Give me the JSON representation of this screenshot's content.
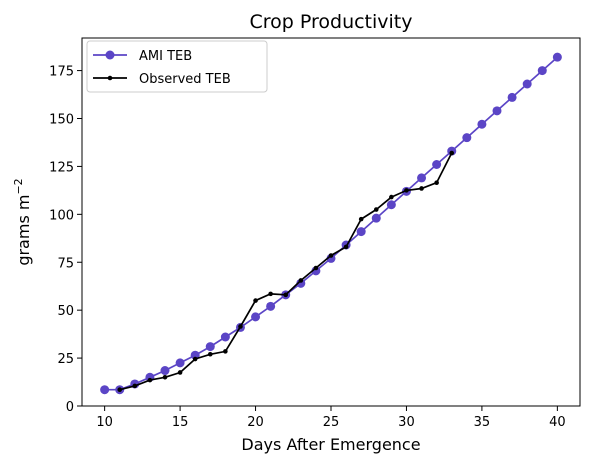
{
  "chart_data": {
    "type": "line",
    "title": "Crop Productivity",
    "xlabel": "Days After Emergence",
    "ylabel": "grams m",
    "ylabel_superscript": "−2",
    "xlim": [
      8.5,
      41.5
    ],
    "ylim": [
      0,
      192
    ],
    "x_ticks": [
      10,
      15,
      20,
      25,
      30,
      35,
      40
    ],
    "y_ticks": [
      0,
      25,
      50,
      75,
      100,
      125,
      150,
      175
    ],
    "grid": false,
    "legend_position": "top-left",
    "series": [
      {
        "name": "AMI TEB",
        "color": "#5b45c6",
        "marker": "circle-large",
        "points": [
          [
            10,
            8.5
          ],
          [
            11,
            8.5
          ],
          [
            12,
            11.5
          ],
          [
            13,
            15
          ],
          [
            14,
            18.5
          ],
          [
            15,
            22.5
          ],
          [
            16,
            26.5
          ],
          [
            17,
            31
          ],
          [
            18,
            36
          ],
          [
            19,
            41
          ],
          [
            20,
            46.5
          ],
          [
            21,
            52
          ],
          [
            22,
            58
          ],
          [
            23,
            64
          ],
          [
            24,
            70.5
          ],
          [
            25,
            77
          ],
          [
            26,
            84
          ],
          [
            27,
            91
          ],
          [
            28,
            98
          ],
          [
            29,
            105
          ],
          [
            30,
            112
          ],
          [
            31,
            119
          ],
          [
            32,
            126
          ],
          [
            33,
            133
          ],
          [
            34,
            140
          ],
          [
            35,
            147
          ],
          [
            36,
            154
          ],
          [
            37,
            161
          ],
          [
            38,
            168
          ],
          [
            39,
            175
          ],
          [
            40,
            182
          ]
        ]
      },
      {
        "name": "Observed TEB",
        "color": "#000000",
        "marker": "circle-small",
        "points": [
          [
            11,
            8.5
          ],
          [
            12,
            10.5
          ],
          [
            13,
            13.5
          ],
          [
            14,
            15
          ],
          [
            15,
            17.5
          ],
          [
            16,
            24.5
          ],
          [
            17,
            27
          ],
          [
            18,
            28.5
          ],
          [
            19,
            41.5
          ],
          [
            20,
            55
          ],
          [
            21,
            58.5
          ],
          [
            22,
            58
          ],
          [
            23,
            65.5
          ],
          [
            24,
            72
          ],
          [
            25,
            78.5
          ],
          [
            26,
            83
          ],
          [
            27,
            97.5
          ],
          [
            28,
            102.5
          ],
          [
            29,
            109
          ],
          [
            30,
            112.5
          ],
          [
            31,
            113.5
          ],
          [
            32,
            116.5
          ],
          [
            33,
            132
          ]
        ]
      }
    ]
  }
}
